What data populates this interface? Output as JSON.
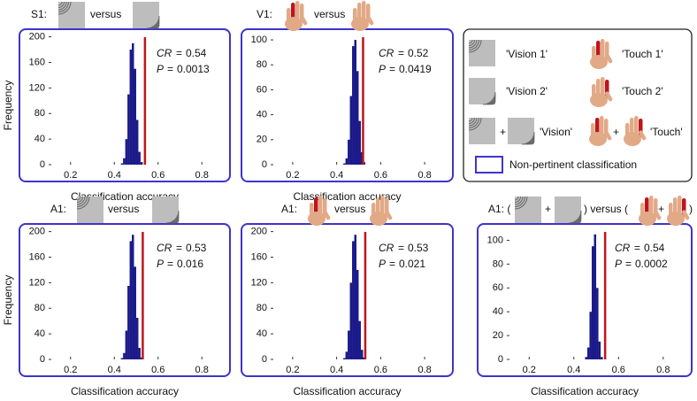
{
  "chart_data": [
    {
      "type": "histogram",
      "title_parts": [
        "S1:",
        "versus"
      ],
      "ylabel": "Frequency",
      "xlabel": "Classification accuracy",
      "bins": [
        0.43,
        0.44,
        0.45,
        0.46,
        0.47,
        0.48,
        0.49,
        0.5,
        0.51,
        0.52,
        0.53
      ],
      "counts": [
        2,
        10,
        40,
        110,
        180,
        190,
        150,
        70,
        20,
        4
      ],
      "color": "#1b1a8a",
      "xlim": [
        0.1,
        0.88
      ],
      "ylim": [
        0,
        205
      ],
      "xticks": [
        0.2,
        0.4,
        0.6,
        0.8
      ],
      "yticks": [
        0,
        40,
        80,
        120,
        160,
        200
      ],
      "cr_label": "CR",
      "equals": "=",
      "cr": 0.54,
      "p_label": "P",
      "p": 0.0013,
      "line_color": "#c0141c"
    },
    {
      "type": "histogram",
      "title_parts": [
        "V1:",
        "versus"
      ],
      "xlabel": "Classification accuracy",
      "bins": [
        0.43,
        0.44,
        0.45,
        0.46,
        0.47,
        0.48,
        0.49,
        0.5,
        0.51,
        0.52,
        0.53
      ],
      "counts": [
        1,
        5,
        20,
        55,
        95,
        100,
        75,
        35,
        10,
        2
      ],
      "color": "#1b1a8a",
      "xlim": [
        0.1,
        0.88
      ],
      "ylim": [
        0,
        105
      ],
      "xticks": [
        0.2,
        0.4,
        0.6,
        0.8
      ],
      "yticks": [
        0,
        20,
        40,
        60,
        80,
        100
      ],
      "cr_label": "CR",
      "equals": "=",
      "cr": 0.52,
      "p_label": "P",
      "p": 0.0419,
      "line_color": "#c0141c"
    },
    {
      "type": "histogram",
      "title_parts": [
        "A1:",
        "versus"
      ],
      "ylabel": "Frequency",
      "xlabel": "Classification accuracy",
      "bins": [
        0.43,
        0.44,
        0.45,
        0.46,
        0.47,
        0.48,
        0.49,
        0.5,
        0.51,
        0.52,
        0.53
      ],
      "counts": [
        2,
        10,
        45,
        115,
        185,
        195,
        145,
        65,
        18,
        3
      ],
      "color": "#1b1a8a",
      "xlim": [
        0.1,
        0.88
      ],
      "ylim": [
        0,
        205
      ],
      "xticks": [
        0.2,
        0.4,
        0.6,
        0.8
      ],
      "yticks": [
        0,
        40,
        80,
        120,
        160,
        200
      ],
      "cr_label": "CR",
      "equals": "=",
      "cr": 0.53,
      "p_label": "P",
      "p": 0.016,
      "line_color": "#c0141c"
    },
    {
      "type": "histogram",
      "title_parts": [
        "A1:",
        "versus"
      ],
      "xlabel": "Classification accuracy",
      "bins": [
        0.43,
        0.44,
        0.45,
        0.46,
        0.47,
        0.48,
        0.49,
        0.5,
        0.51,
        0.52,
        0.53
      ],
      "counts": [
        2,
        12,
        45,
        120,
        185,
        195,
        140,
        60,
        15,
        3
      ],
      "color": "#1b1a8a",
      "xlim": [
        0.1,
        0.88
      ],
      "ylim": [
        0,
        205
      ],
      "xticks": [
        0.2,
        0.4,
        0.6,
        0.8
      ],
      "yticks": [
        0,
        40,
        80,
        120,
        160,
        200
      ],
      "cr_label": "CR",
      "equals": "=",
      "cr": 0.53,
      "p_label": "P",
      "p": 0.021,
      "line_color": "#c0141c"
    },
    {
      "type": "histogram",
      "title_parts": [
        "A1: (",
        "+",
        ") versus (",
        "+",
        ")"
      ],
      "xlabel": "Classification accuracy",
      "bins": [
        0.45,
        0.46,
        0.47,
        0.48,
        0.49,
        0.5,
        0.51,
        0.52,
        0.53
      ],
      "counts": [
        2,
        10,
        40,
        95,
        105,
        60,
        15,
        2
      ],
      "color": "#1b1a8a",
      "xlim": [
        0.1,
        0.88
      ],
      "ylim": [
        0,
        110
      ],
      "xticks": [
        0.2,
        0.4,
        0.6,
        0.8
      ],
      "yticks": [
        0,
        20,
        40,
        60,
        80,
        100
      ],
      "cr_label": "CR",
      "equals": "=",
      "cr": 0.54,
      "p_label": "P",
      "p": 0.0002,
      "line_color": "#c0141c"
    }
  ],
  "legend": {
    "vision1": "'Vision 1'",
    "touch1": "'Touch 1'",
    "vision2": "'Vision 2'",
    "touch2": "'Touch 2'",
    "plus": "+",
    "vision": "'Vision'",
    "touch": "'Touch'",
    "nonpertinent": "Non-pertinent classification"
  }
}
